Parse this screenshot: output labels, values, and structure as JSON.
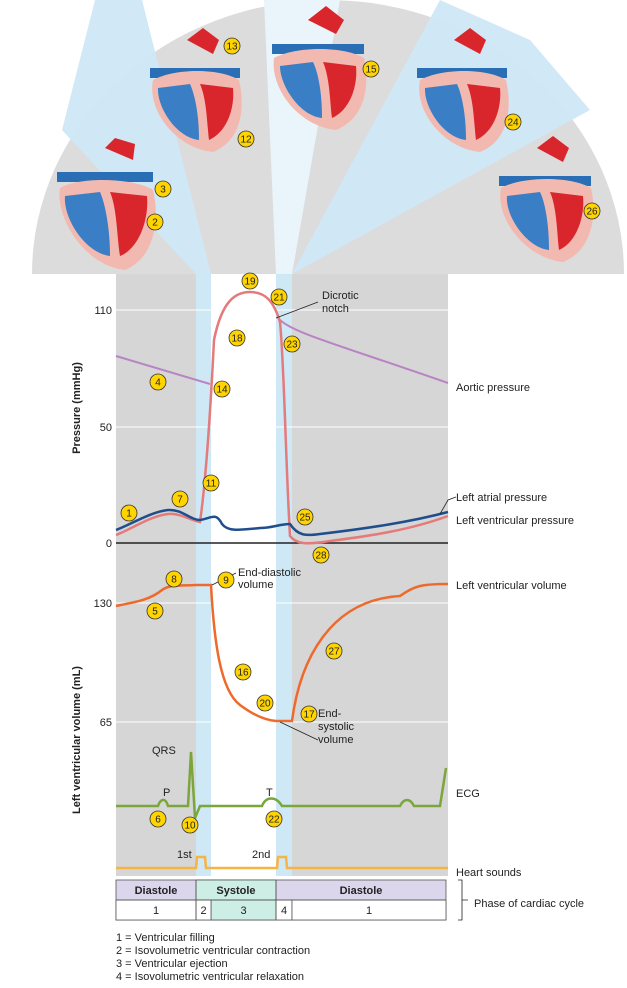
{
  "axes": {
    "pressure_label": "Pressure (mmHg)",
    "volume_label": "Left ventricular volume (mL)",
    "pressure_ticks": [
      "110",
      "50",
      "0"
    ],
    "volume_ticks": [
      "130",
      "65"
    ]
  },
  "curve_labels": {
    "aortic": "Aortic pressure",
    "atrial": "Left atrial pressure",
    "ventricular": "Left ventricular pressure",
    "volume": "Left ventricular volume",
    "ecg": "ECG",
    "sounds": "Heart sounds",
    "phase": "Phase of cardiac cycle"
  },
  "annotations": {
    "dicrotic_1": "Dicrotic",
    "dicrotic_2": "notch",
    "edv_1": "End-diastolic",
    "edv_2": "volume",
    "esv_1": "End-",
    "esv_2": "systolic",
    "esv_3": "volume",
    "qrs": "QRS",
    "p": "P",
    "t": "T",
    "s1": "1st",
    "s2": "2nd"
  },
  "markers": [
    "1",
    "2",
    "3",
    "4",
    "5",
    "6",
    "7",
    "8",
    "9",
    "10",
    "11",
    "12",
    "13",
    "14",
    "15",
    "16",
    "17",
    "18",
    "19",
    "20",
    "21",
    "22",
    "23",
    "24",
    "25",
    "26",
    "27",
    "28"
  ],
  "phase_bar": {
    "diastole": "Diastole",
    "systole": "Systole",
    "n1": "1",
    "n2": "2",
    "n3": "3",
    "n4": "4"
  },
  "legend": [
    "1 = Ventricular filling",
    "2 = Isovolumetric ventricular contraction",
    "3 = Ventricular ejection",
    "4 = Isovolumetric ventricular relaxation"
  ],
  "colors": {
    "aortic": "#b884c4",
    "ventricular": "#e57a7a",
    "atrial": "#1f4e8c",
    "volume": "#ee6a2c",
    "ecg": "#7aa63c",
    "sounds": "#f5b443",
    "marker": "#ffd400",
    "diastole_band": "#d6d6d6",
    "iso_band": "#cfe8f6",
    "phase_box": "#dcd6ec",
    "systole_box": "#cdeee4"
  }
}
